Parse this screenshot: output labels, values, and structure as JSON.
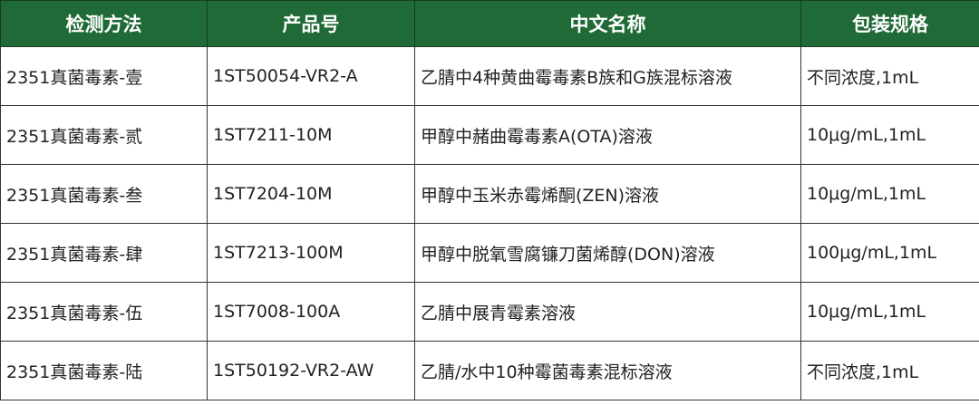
{
  "header_color": "#1f6a36",
  "columns": [
    "检测方法",
    "产品号",
    "中文名称",
    "包装规格"
  ],
  "rows": [
    [
      "2351真菌毒素-壹",
      "1ST50054-VR2-A",
      "乙腈中4种黄曲霉毒素B族和G族混标溶液",
      "不同浓度,1mL"
    ],
    [
      "2351真菌毒素-贰",
      "1ST7211-10M",
      "甲醇中赭曲霉毒素A(OTA)溶液",
      "10μg/mL,1mL"
    ],
    [
      "2351真菌毒素-叁",
      "1ST7204-10M",
      "甲醇中玉米赤霉烯酮(ZEN)溶液",
      "10μg/mL,1mL"
    ],
    [
      "2351真菌毒素-肆",
      "1ST7213-100M",
      "甲醇中脱氧雪腐镰刀菌烯醇(DON)溶液",
      "100μg/mL,1mL"
    ],
    [
      "2351真菌毒素-伍",
      "1ST7008-100A",
      "乙腈中展青霉素溶液",
      "10μg/mL,1mL"
    ],
    [
      "2351真菌毒素-陆",
      "1ST50192-VR2-AW",
      "乙腈/水中10种霉菌毒素混标溶液",
      "不同浓度,1mL"
    ]
  ]
}
